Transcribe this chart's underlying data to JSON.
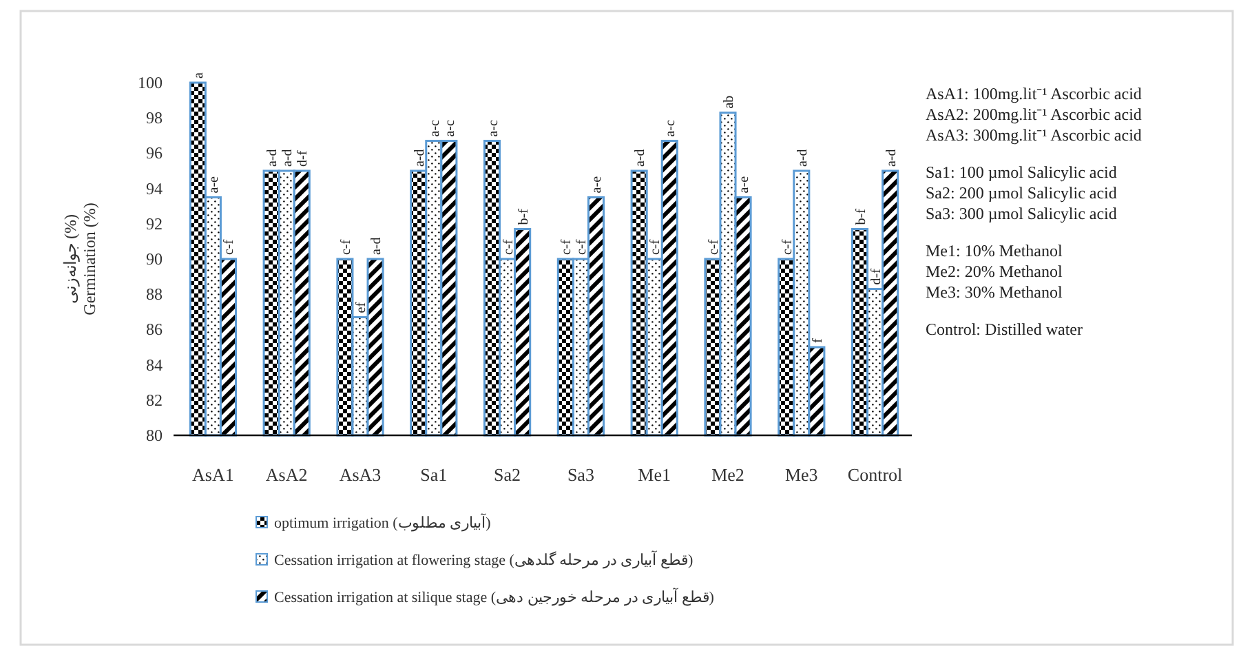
{
  "chart_data": {
    "type": "bar",
    "ylabel": "جوانه‌زنی (%)\nGermination (%)",
    "categories": [
      "AsA1",
      "AsA2",
      "AsA3",
      "Sa1",
      "Sa2",
      "Sa3",
      "Me1",
      "Me2",
      "Me3",
      "Control"
    ],
    "series": [
      {
        "name": "optimum irrigation (آبیاری مطلوب)",
        "color": "#5b9bd5",
        "values": [
          100,
          95,
          90,
          95,
          96.7,
          90,
          95,
          90,
          90,
          91.7
        ],
        "value_labels": [
          "a",
          "a-d",
          "c-f",
          "a-d",
          "a-c",
          "c-f",
          "a-d",
          "c-f",
          "c-f",
          "b-f"
        ]
      },
      {
        "name": "Cessation irrigation at flowering stage (قطع آبیاری در مرحله گلدهی)",
        "color": "#5b9bd5",
        "values": [
          93.5,
          95,
          86.7,
          96.7,
          90,
          90,
          90,
          98.3,
          95,
          88.3
        ],
        "value_labels": [
          "a-e",
          "a-d",
          "ef",
          "a-c",
          "c-f",
          "c-f",
          "c-f",
          "ab",
          "a-d",
          "d-f"
        ]
      },
      {
        "name": "Cessation irrigation at silique stage (قطع آبیاری در مرحله خورجین دهی)",
        "color": "#5b9bd5",
        "values": [
          90,
          95,
          90,
          96.7,
          91.7,
          93.5,
          96.7,
          93.5,
          85,
          95
        ],
        "value_labels": [
          "c-f",
          "d-f",
          "a-d",
          "a-c",
          "b-f",
          "a-e",
          "a-c",
          "a-e",
          "f",
          "a-d"
        ]
      }
    ],
    "ylim": [
      80,
      100
    ],
    "yticks": [
      80,
      82,
      84,
      86,
      88,
      90,
      92,
      94,
      96,
      98,
      100
    ],
    "grid": false,
    "legend": "bottom",
    "annotations": [
      "AsA1: 100mg.lit⁻¹ Ascorbic acid",
      "AsA2: 200mg.lit⁻¹ Ascorbic acid",
      "AsA3: 300mg.lit⁻¹ Ascorbic acid",
      "Sa1: 100 µmol Salicylic acid",
      "Sa2: 200 µmol Salicylic acid",
      "Sa3: 300 µmol Salicylic acid",
      "Me1: 10% Methanol",
      "Me2: 20% Methanol",
      "Me3: 30% Methanol",
      "Control: Distilled water"
    ]
  }
}
